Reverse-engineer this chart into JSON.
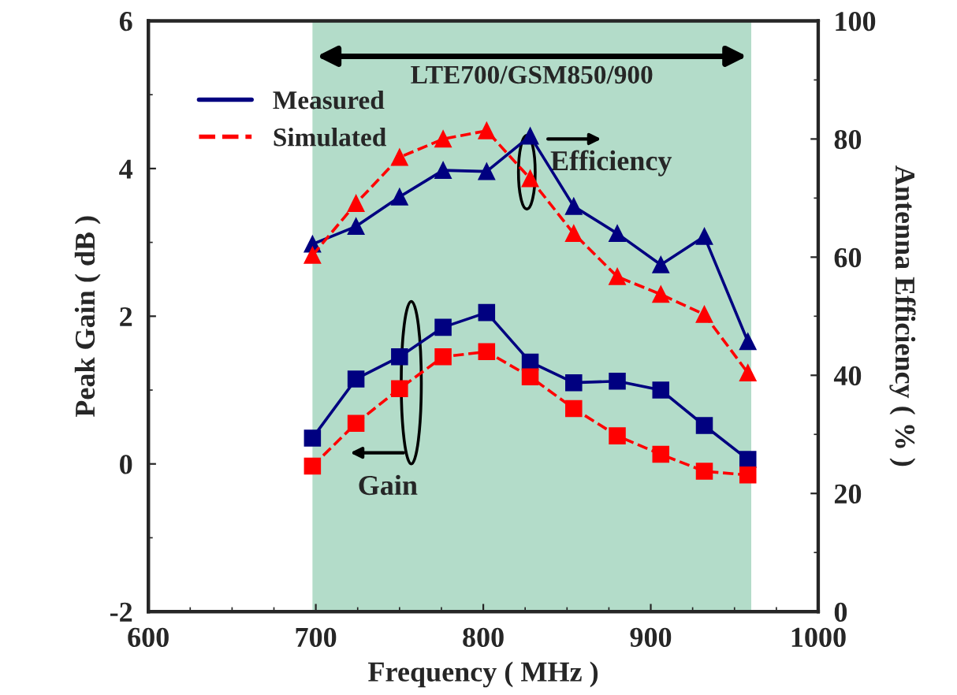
{
  "chart_data": {
    "type": "line",
    "xlabel": "Frequency ( MHz )",
    "ylabel": "Peak Gain ( dB )",
    "y2label": "Antenna Efficiency ( % )",
    "x": [
      698,
      724,
      750,
      776,
      802,
      828,
      854,
      880,
      906,
      932,
      958
    ],
    "xlim": [
      600,
      1000
    ],
    "xticks": [
      600,
      700,
      800,
      900,
      1000
    ],
    "ylim": [
      -2,
      6
    ],
    "yticks": [
      -2,
      0,
      2,
      4,
      6
    ],
    "y2lim": [
      0,
      100
    ],
    "y2ticks": [
      0,
      20,
      40,
      60,
      80,
      100
    ],
    "series": [
      {
        "name": "Measured",
        "color": "#000080",
        "marker": "square",
        "line_style": "solid",
        "values": [
          0.35,
          1.15,
          1.45,
          1.85,
          2.05,
          1.38,
          1.1,
          1.12,
          1.0,
          0.52,
          0.06
        ]
      },
      {
        "name": "Simulated",
        "color": "#ff0000",
        "marker": "square",
        "line_style": "dashed",
        "values": [
          -0.03,
          0.55,
          1.02,
          1.45,
          1.52,
          1.18,
          0.75,
          0.38,
          0.13,
          -0.1,
          -0.15
        ]
      },
      {
        "color": "#000080",
        "marker": "triangle",
        "line_style": "solid",
        "axis": "y2",
        "values": [
          62.2,
          65.2,
          70.2,
          74.7,
          74.5,
          80.5,
          68.6,
          64,
          58.7,
          63.5,
          45.7
        ]
      },
      {
        "color": "#ff0000",
        "marker": "triangle",
        "line_style": "dashed",
        "axis": "y2",
        "values": [
          60.3,
          69.1,
          76.9,
          80,
          81.4,
          73.3,
          64,
          56.7,
          53.7,
          50.3,
          40.4
        ]
      }
    ],
    "bands": [
      {
        "axis": "x",
        "from": 698,
        "to": 960,
        "label": "LTE700/GSM850/900",
        "color": "#b3dcc9"
      }
    ],
    "annotations": [
      "Gain",
      "Efficiency"
    ],
    "legend": "top left",
    "grid": false
  }
}
